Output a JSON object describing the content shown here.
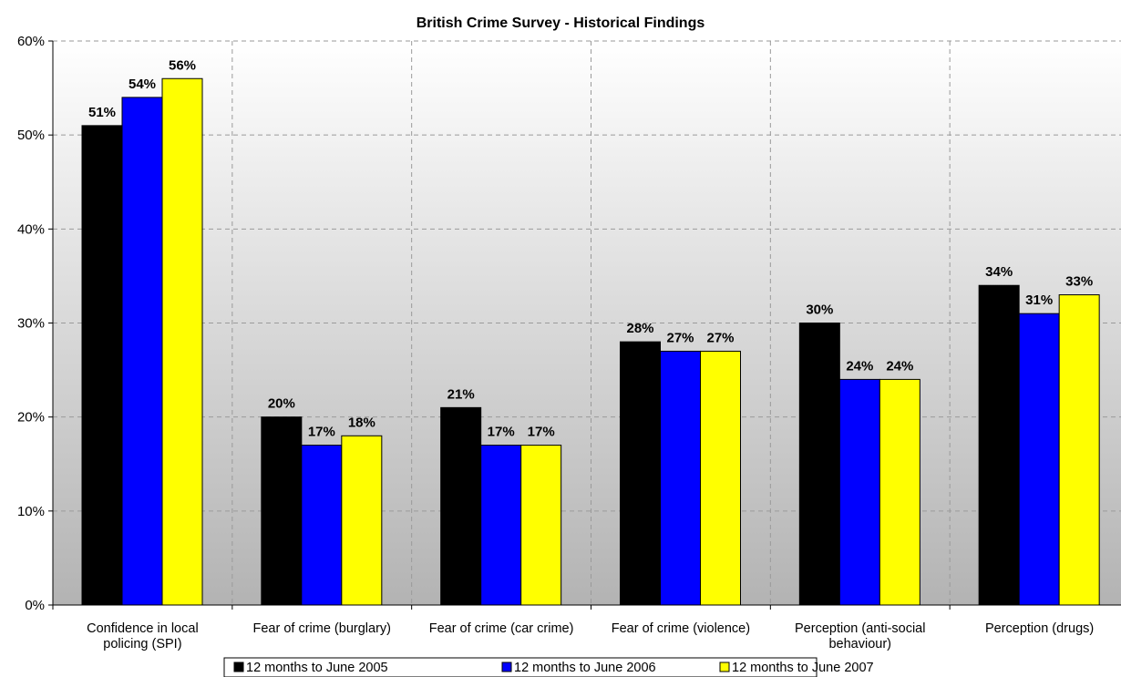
{
  "chart_data": {
    "type": "bar",
    "title": "British Crime Survey - Historical Findings",
    "xlabel": "",
    "ylabel": "",
    "ylim": [
      0,
      60
    ],
    "y_ticks": [
      "0%",
      "10%",
      "20%",
      "30%",
      "40%",
      "50%",
      "60%"
    ],
    "value_suffix": "%",
    "grid": true,
    "legend_position": "bottom",
    "categories": [
      [
        "Confidence in local",
        "policing (SPI)"
      ],
      [
        "Fear of crime (burglary)"
      ],
      [
        "Fear of crime (car crime)"
      ],
      [
        "Fear of crime (violence)"
      ],
      [
        "Perception (anti-social",
        "behaviour)"
      ],
      [
        "Perception (drugs)"
      ]
    ],
    "series": [
      {
        "name": "12 months to June 2005",
        "color": "#000000",
        "values": [
          51,
          20,
          21,
          28,
          30,
          34
        ]
      },
      {
        "name": "12 months to June 2006",
        "color": "#0000ff",
        "values": [
          54,
          17,
          17,
          27,
          24,
          31
        ]
      },
      {
        "name": "12 months to June 2007",
        "color": "#ffff00",
        "values": [
          56,
          18,
          17,
          27,
          24,
          33
        ]
      }
    ]
  }
}
